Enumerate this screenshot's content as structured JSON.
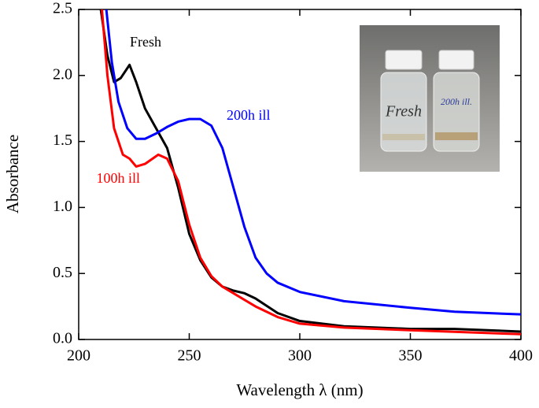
{
  "chart_data": {
    "type": "line",
    "x_label": "Wavelength λ (nm)",
    "y_label": "Absorbance",
    "xlim": [
      200,
      400
    ],
    "ylim": [
      0,
      2.5
    ],
    "xticks": [
      200,
      250,
      300,
      350,
      400
    ],
    "yticks": [
      {
        "value": 0,
        "label": "0.0"
      },
      0.5,
      {
        "value": 1,
        "label": "1.0"
      },
      1.5,
      {
        "value": 2,
        "label": "2.0"
      },
      2.5
    ],
    "series": [
      {
        "name": "Fresh",
        "color": "#000000",
        "x": [
          210,
          213,
          216,
          219,
          223,
          226,
          230,
          235,
          240,
          245,
          250,
          255,
          260,
          265,
          270,
          275,
          280,
          290,
          300,
          320,
          350,
          370,
          400
        ],
        "values": [
          2.5,
          2.15,
          1.95,
          1.98,
          2.08,
          1.95,
          1.75,
          1.6,
          1.45,
          1.15,
          0.8,
          0.6,
          0.47,
          0.4,
          0.37,
          0.35,
          0.31,
          0.2,
          0.14,
          0.1,
          0.08,
          0.08,
          0.06
        ]
      },
      {
        "name": "200h ill",
        "color": "#0000ff",
        "x": [
          212.5,
          215,
          218,
          222,
          226,
          230,
          235,
          240,
          245,
          250,
          255,
          260,
          265,
          270,
          275,
          280,
          285,
          290,
          300,
          320,
          350,
          370,
          400
        ],
        "values": [
          2.5,
          2.1,
          1.8,
          1.6,
          1.52,
          1.52,
          1.56,
          1.61,
          1.65,
          1.67,
          1.67,
          1.62,
          1.45,
          1.15,
          0.85,
          0.62,
          0.5,
          0.43,
          0.36,
          0.29,
          0.24,
          0.21,
          0.19
        ]
      },
      {
        "name": "100h ill",
        "color": "#ff0000",
        "x": [
          210.5,
          213,
          216,
          220,
          223,
          226,
          230,
          236,
          240,
          245,
          250,
          255,
          260,
          265,
          270,
          280,
          290,
          300,
          320,
          350,
          400
        ],
        "values": [
          2.5,
          2.0,
          1.6,
          1.4,
          1.37,
          1.31,
          1.33,
          1.4,
          1.37,
          1.2,
          0.87,
          0.62,
          0.48,
          0.4,
          0.35,
          0.25,
          0.17,
          0.12,
          0.09,
          0.07,
          0.04
        ]
      }
    ],
    "inset_labels": [
      "Fresh",
      "200h ill."
    ]
  }
}
